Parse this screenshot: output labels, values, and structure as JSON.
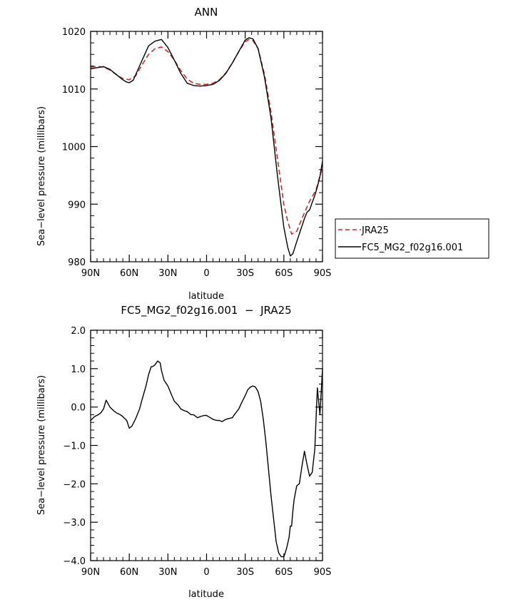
{
  "chart_data": [
    {
      "type": "line",
      "title": "ANN",
      "xlabel": "latitude",
      "ylabel": "Sea−level pressure (millibars)",
      "xlim": [
        90,
        -90
      ],
      "ylim": [
        980,
        1020
      ],
      "x_ticks": [
        {
          "value": 90,
          "label": "90N"
        },
        {
          "value": 60,
          "label": "60N"
        },
        {
          "value": 30,
          "label": "30N"
        },
        {
          "value": 0,
          "label": "0"
        },
        {
          "value": -30,
          "label": "30S"
        },
        {
          "value": -60,
          "label": "60S"
        },
        {
          "value": -90,
          "label": "90S"
        }
      ],
      "y_ticks": [
        {
          "value": 980,
          "label": "980"
        },
        {
          "value": 990,
          "label": "990"
        },
        {
          "value": 1000,
          "label": "1000"
        },
        {
          "value": 1010,
          "label": "1010"
        },
        {
          "value": 1020,
          "label": "1020"
        }
      ],
      "legend_position": "right-outside",
      "series": [
        {
          "name": "JRA25",
          "color": "#d62728",
          "dash": "dashed",
          "x": [
            90,
            85,
            80,
            75,
            70,
            65,
            60,
            55,
            50,
            45,
            40,
            35,
            30,
            25,
            20,
            15,
            10,
            5,
            0,
            -5,
            -10,
            -15,
            -20,
            -25,
            -30,
            -33,
            -36,
            -40,
            -45,
            -50,
            -55,
            -60,
            -63,
            -66,
            -70,
            -75,
            -80,
            -85,
            -90
          ],
          "y": [
            1013.8,
            1013.9,
            1013.8,
            1013.3,
            1012.5,
            1011.8,
            1011.6,
            1012.3,
            1014.2,
            1016.0,
            1017.0,
            1017.3,
            1016.5,
            1015.0,
            1013.2,
            1011.7,
            1011.0,
            1010.8,
            1010.8,
            1011.0,
            1011.6,
            1012.8,
            1014.5,
            1016.5,
            1018.2,
            1018.6,
            1018.4,
            1017.0,
            1012.5,
            1006.0,
            998.0,
            990.0,
            987.0,
            984.8,
            985.3,
            988.0,
            990.5,
            992.5,
            996.5
          ]
        },
        {
          "name": "FC5_MG2_f02g16.001",
          "color": "#000000",
          "dash": "solid",
          "x": [
            90,
            85,
            80,
            75,
            70,
            65,
            62,
            60,
            57,
            55,
            50,
            45,
            40,
            35,
            30,
            25,
            20,
            15,
            10,
            5,
            0,
            -5,
            -10,
            -15,
            -20,
            -25,
            -30,
            -33,
            -36,
            -40,
            -45,
            -50,
            -55,
            -60,
            -63,
            -65,
            -67,
            -70,
            -73,
            -76,
            -78,
            -80,
            -82,
            -84,
            -86,
            -88,
            -90
          ],
          "y": [
            1013.5,
            1013.7,
            1013.9,
            1013.4,
            1012.5,
            1011.6,
            1011.2,
            1011.1,
            1011.5,
            1012.5,
            1015.0,
            1017.5,
            1018.3,
            1018.6,
            1017.2,
            1015.0,
            1012.7,
            1011.0,
            1010.6,
            1010.5,
            1010.6,
            1010.8,
            1011.5,
            1012.7,
            1014.5,
            1016.5,
            1018.5,
            1018.9,
            1018.7,
            1017.0,
            1012.0,
            1005.0,
            995.0,
            986.0,
            982.5,
            981.0,
            981.4,
            983.5,
            985.5,
            987.5,
            988.6,
            989.0,
            990.3,
            991.5,
            993.0,
            994.8,
            997.5
          ]
        }
      ]
    },
    {
      "type": "line",
      "title": "FC5_MG2_f02g16.001  −  JRA25",
      "xlabel": "latitude",
      "ylabel": "Sea−level pressure (millibars)",
      "xlim": [
        90,
        -90
      ],
      "ylim": [
        -4.0,
        2.0
      ],
      "x_ticks": [
        {
          "value": 90,
          "label": "90N"
        },
        {
          "value": 60,
          "label": "60N"
        },
        {
          "value": 30,
          "label": "30N"
        },
        {
          "value": 0,
          "label": "0"
        },
        {
          "value": -30,
          "label": "30S"
        },
        {
          "value": -60,
          "label": "60S"
        },
        {
          "value": -90,
          "label": "90S"
        }
      ],
      "y_ticks": [
        {
          "value": -4,
          "label": "−4.0"
        },
        {
          "value": -3,
          "label": "−3.0"
        },
        {
          "value": -2,
          "label": "−2.0"
        },
        {
          "value": -1,
          "label": "−1.0"
        },
        {
          "value": 0,
          "label": "0.0"
        },
        {
          "value": 1,
          "label": "1.0"
        },
        {
          "value": 2,
          "label": "2.0"
        }
      ],
      "series": [
        {
          "color": "#000000",
          "dash": "solid",
          "x": [
            90,
            87,
            84,
            82,
            80,
            78,
            75,
            72,
            70,
            67,
            65,
            62,
            60,
            58,
            55,
            52,
            50,
            47,
            45,
            43,
            42,
            40,
            38,
            36,
            35,
            33,
            30,
            27,
            25,
            22,
            20,
            17,
            15,
            12,
            10,
            7,
            5,
            2,
            0,
            -3,
            -5,
            -8,
            -10,
            -12,
            -15,
            -17,
            -20,
            -22,
            -25,
            -27,
            -30,
            -32,
            -34,
            -36,
            -38,
            -40,
            -42,
            -44,
            -46,
            -48,
            -50,
            -52,
            -54,
            -56,
            -58,
            -60,
            -62,
            -64,
            -65,
            -66,
            -67,
            -68,
            -70,
            -72,
            -74,
            -76,
            -78,
            -80,
            -82,
            -84,
            -86,
            -88,
            -90
          ],
          "y": [
            -0.35,
            -0.25,
            -0.2,
            -0.15,
            -0.05,
            0.18,
            0.0,
            -0.1,
            -0.15,
            -0.2,
            -0.25,
            -0.35,
            -0.55,
            -0.5,
            -0.3,
            -0.05,
            0.2,
            0.55,
            0.85,
            1.05,
            1.05,
            1.1,
            1.2,
            1.15,
            0.95,
            0.7,
            0.55,
            0.3,
            0.15,
            0.05,
            -0.05,
            -0.1,
            -0.12,
            -0.2,
            -0.2,
            -0.28,
            -0.25,
            -0.22,
            -0.22,
            -0.28,
            -0.32,
            -0.35,
            -0.35,
            -0.38,
            -0.32,
            -0.3,
            -0.28,
            -0.18,
            -0.05,
            0.1,
            0.3,
            0.45,
            0.52,
            0.55,
            0.52,
            0.4,
            0.15,
            -0.3,
            -0.9,
            -1.6,
            -2.3,
            -2.9,
            -3.5,
            -3.8,
            -3.9,
            -3.9,
            -3.7,
            -3.4,
            -3.1,
            -3.1,
            -2.7,
            -2.4,
            -2.05,
            -2.0,
            -1.55,
            -1.15,
            -1.5,
            -1.8,
            -1.7,
            -1.1,
            0.5,
            -0.2,
            1.0
          ]
        }
      ]
    }
  ]
}
